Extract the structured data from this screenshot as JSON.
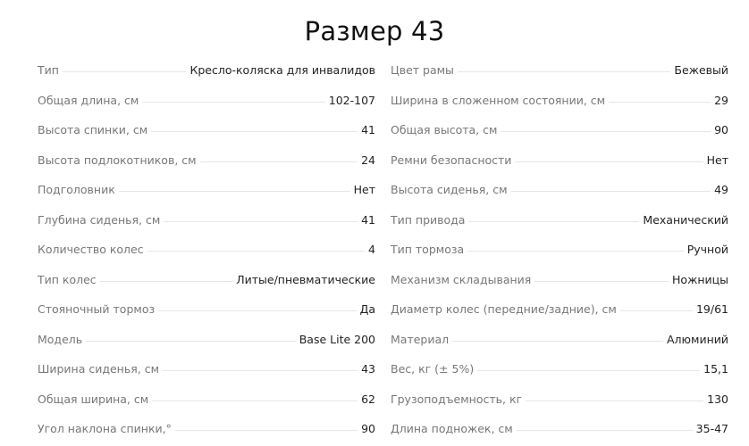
{
  "title": "Размер 43",
  "left": [
    {
      "label": "Тип",
      "value": "Кресло-коляска для инвалидов"
    },
    {
      "label": "Общая длина, см",
      "value": "102-107"
    },
    {
      "label": "Высота спинки, см",
      "value": "41"
    },
    {
      "label": "Высота подлокотников, см",
      "value": "24"
    },
    {
      "label": "Подголовник",
      "value": "Нет"
    },
    {
      "label": "Глубина сиденья, см",
      "value": "41"
    },
    {
      "label": "Количество колес",
      "value": "4"
    },
    {
      "label": "Тип колес",
      "value": "Литые/пневматические"
    },
    {
      "label": "Стояночный тормоз",
      "value": "Да"
    },
    {
      "label": "Модель",
      "value": "Base Lite 200"
    },
    {
      "label": "Ширина сиденья, см",
      "value": "43"
    },
    {
      "label": "Общая ширина, см",
      "value": "62"
    },
    {
      "label": "Угол наклона спинки,°",
      "value": "90"
    }
  ],
  "right": [
    {
      "label": "Цвет рамы",
      "value": "Бежевый"
    },
    {
      "label": "Ширина в сложенном состоянии, см",
      "value": "29"
    },
    {
      "label": "Общая высота, см",
      "value": "90"
    },
    {
      "label": "Ремни безопасности",
      "value": "Нет"
    },
    {
      "label": "Высота сиденья, см",
      "value": "49"
    },
    {
      "label": "Тип привода",
      "value": "Механический"
    },
    {
      "label": "Тип тормоза",
      "value": "Ручной"
    },
    {
      "label": "Механизм складывания",
      "value": "Ножницы"
    },
    {
      "label": "Диаметр колес (передние/задние), см",
      "value": "19/61"
    },
    {
      "label": "Материал",
      "value": "Алюминий"
    },
    {
      "label": "Вес, кг (± 5%)",
      "value": "15,1"
    },
    {
      "label": "Грузоподъемность, кг",
      "value": "130"
    },
    {
      "label": "Длина подножек, см",
      "value": "35-47"
    }
  ]
}
